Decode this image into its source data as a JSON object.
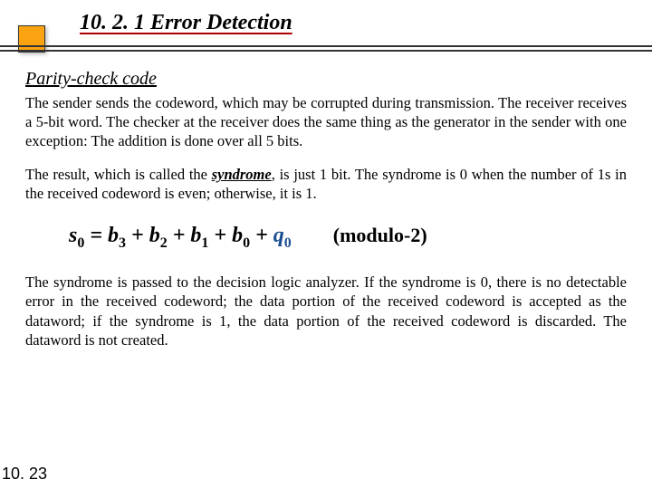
{
  "header": {
    "title": "10. 2. 1 Error Detection",
    "subtitle": "Parity-check code"
  },
  "paragraphs": {
    "p1": "The sender sends the codeword, which may be corrupted during transmission. The receiver receives a 5-bit word. The checker at the receiver does the same thing as the generator in the sender with one exception: The addition is done over all 5 bits.",
    "p2_a": "The result, which is called the ",
    "p2_bold": "syndrome",
    "p2_b": ", is just 1 bit. The syndrome is 0 when the number of 1s in the received codeword is even; otherwise, it is 1.",
    "p3": "The syndrome is passed to the decision logic analyzer. If the syndrome is 0, there is no detectable error in the received codeword; the data portion of the received codeword is accepted as the dataword; if the syndrome is 1, the data portion of the received codeword is discarded. The dataword is not created."
  },
  "formula": {
    "s": "s",
    "s_sub": "0",
    "eq": " = ",
    "b3": "b",
    "b3_sub": "3",
    "plus": " + ",
    "b2": "b",
    "b2_sub": "2",
    "b1": "b",
    "b1_sub": "1",
    "b0": "b",
    "b0_sub": "0",
    "q": "q",
    "q_sub": "0",
    "mod": "(modulo-2)"
  },
  "page": "10. 23",
  "colors": {
    "accent_orange": "#fca311",
    "underline_red": "#b00000",
    "formula_blue": "#1a4d8f"
  }
}
